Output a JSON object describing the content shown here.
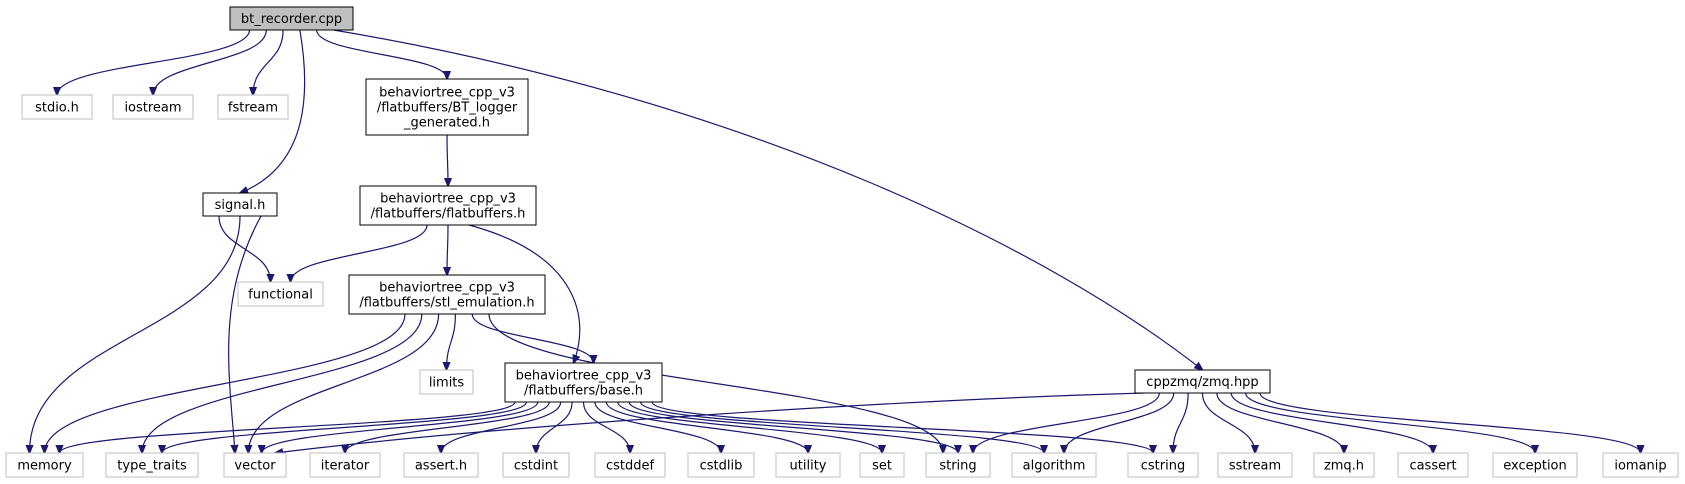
{
  "diagram": {
    "nodes": [
      {
        "id": "bt_recorder",
        "lines": [
          "bt_recorder.cpp"
        ],
        "kind": "root"
      },
      {
        "id": "stdio",
        "lines": [
          "stdio.h"
        ],
        "kind": "ext"
      },
      {
        "id": "iostream",
        "lines": [
          "iostream"
        ],
        "kind": "ext"
      },
      {
        "id": "fstream",
        "lines": [
          "fstream"
        ],
        "kind": "ext"
      },
      {
        "id": "bt_logger",
        "lines": [
          "behaviortree_cpp_v3",
          "/flatbuffers/BT_logger",
          "_generated.h"
        ],
        "kind": "int"
      },
      {
        "id": "signal",
        "lines": [
          "signal.h"
        ],
        "kind": "int"
      },
      {
        "id": "flatbuffers",
        "lines": [
          "behaviortree_cpp_v3",
          "/flatbuffers/flatbuffers.h"
        ],
        "kind": "int"
      },
      {
        "id": "functional",
        "lines": [
          "functional"
        ],
        "kind": "ext"
      },
      {
        "id": "stl_emulation",
        "lines": [
          "behaviortree_cpp_v3",
          "/flatbuffers/stl_emulation.h"
        ],
        "kind": "int"
      },
      {
        "id": "limits",
        "lines": [
          "limits"
        ],
        "kind": "ext"
      },
      {
        "id": "base",
        "lines": [
          "behaviortree_cpp_v3",
          "/flatbuffers/base.h"
        ],
        "kind": "int"
      },
      {
        "id": "zmq_hpp",
        "lines": [
          "cppzmq/zmq.hpp"
        ],
        "kind": "int"
      },
      {
        "id": "memory",
        "lines": [
          "memory"
        ],
        "kind": "ext"
      },
      {
        "id": "type_traits",
        "lines": [
          "type_traits"
        ],
        "kind": "ext"
      },
      {
        "id": "vector",
        "lines": [
          "vector"
        ],
        "kind": "ext"
      },
      {
        "id": "iterator",
        "lines": [
          "iterator"
        ],
        "kind": "ext"
      },
      {
        "id": "assert",
        "lines": [
          "assert.h"
        ],
        "kind": "ext"
      },
      {
        "id": "cstdint",
        "lines": [
          "cstdint"
        ],
        "kind": "ext"
      },
      {
        "id": "cstddef",
        "lines": [
          "cstddef"
        ],
        "kind": "ext"
      },
      {
        "id": "cstdlib",
        "lines": [
          "cstdlib"
        ],
        "kind": "ext"
      },
      {
        "id": "utility",
        "lines": [
          "utility"
        ],
        "kind": "ext"
      },
      {
        "id": "set",
        "lines": [
          "set"
        ],
        "kind": "ext"
      },
      {
        "id": "string",
        "lines": [
          "string"
        ],
        "kind": "ext"
      },
      {
        "id": "algorithm",
        "lines": [
          "algorithm"
        ],
        "kind": "ext"
      },
      {
        "id": "cstring",
        "lines": [
          "cstring"
        ],
        "kind": "ext"
      },
      {
        "id": "sstream",
        "lines": [
          "sstream"
        ],
        "kind": "ext"
      },
      {
        "id": "zmq_h",
        "lines": [
          "zmq.h"
        ],
        "kind": "ext"
      },
      {
        "id": "cassert",
        "lines": [
          "cassert"
        ],
        "kind": "ext"
      },
      {
        "id": "exception",
        "lines": [
          "exception"
        ],
        "kind": "ext"
      },
      {
        "id": "iomanip",
        "lines": [
          "iomanip"
        ],
        "kind": "ext"
      }
    ],
    "edges": [
      [
        "bt_recorder",
        "stdio"
      ],
      [
        "bt_recorder",
        "iostream"
      ],
      [
        "bt_recorder",
        "fstream"
      ],
      [
        "bt_recorder",
        "signal"
      ],
      [
        "bt_recorder",
        "bt_logger"
      ],
      [
        "bt_recorder",
        "zmq_hpp"
      ],
      [
        "bt_logger",
        "flatbuffers"
      ],
      [
        "signal",
        "functional"
      ],
      [
        "signal",
        "memory"
      ],
      [
        "signal",
        "vector"
      ],
      [
        "flatbuffers",
        "functional"
      ],
      [
        "flatbuffers",
        "stl_emulation"
      ],
      [
        "flatbuffers",
        "base"
      ],
      [
        "stl_emulation",
        "memory"
      ],
      [
        "stl_emulation",
        "type_traits"
      ],
      [
        "stl_emulation",
        "vector"
      ],
      [
        "stl_emulation",
        "limits"
      ],
      [
        "stl_emulation",
        "base"
      ],
      [
        "stl_emulation",
        "string"
      ],
      [
        "base",
        "memory"
      ],
      [
        "base",
        "type_traits"
      ],
      [
        "base",
        "vector"
      ],
      [
        "base",
        "iterator"
      ],
      [
        "base",
        "assert"
      ],
      [
        "base",
        "cstdint"
      ],
      [
        "base",
        "cstddef"
      ],
      [
        "base",
        "cstdlib"
      ],
      [
        "base",
        "utility"
      ],
      [
        "base",
        "set"
      ],
      [
        "base",
        "string"
      ],
      [
        "base",
        "algorithm"
      ],
      [
        "base",
        "cstring"
      ],
      [
        "zmq_hpp",
        "vector"
      ],
      [
        "zmq_hpp",
        "string"
      ],
      [
        "zmq_hpp",
        "algorithm"
      ],
      [
        "zmq_hpp",
        "cstring"
      ],
      [
        "zmq_hpp",
        "sstream"
      ],
      [
        "zmq_hpp",
        "zmq_h"
      ],
      [
        "zmq_hpp",
        "cassert"
      ],
      [
        "zmq_hpp",
        "exception"
      ],
      [
        "zmq_hpp",
        "iomanip"
      ]
    ]
  }
}
